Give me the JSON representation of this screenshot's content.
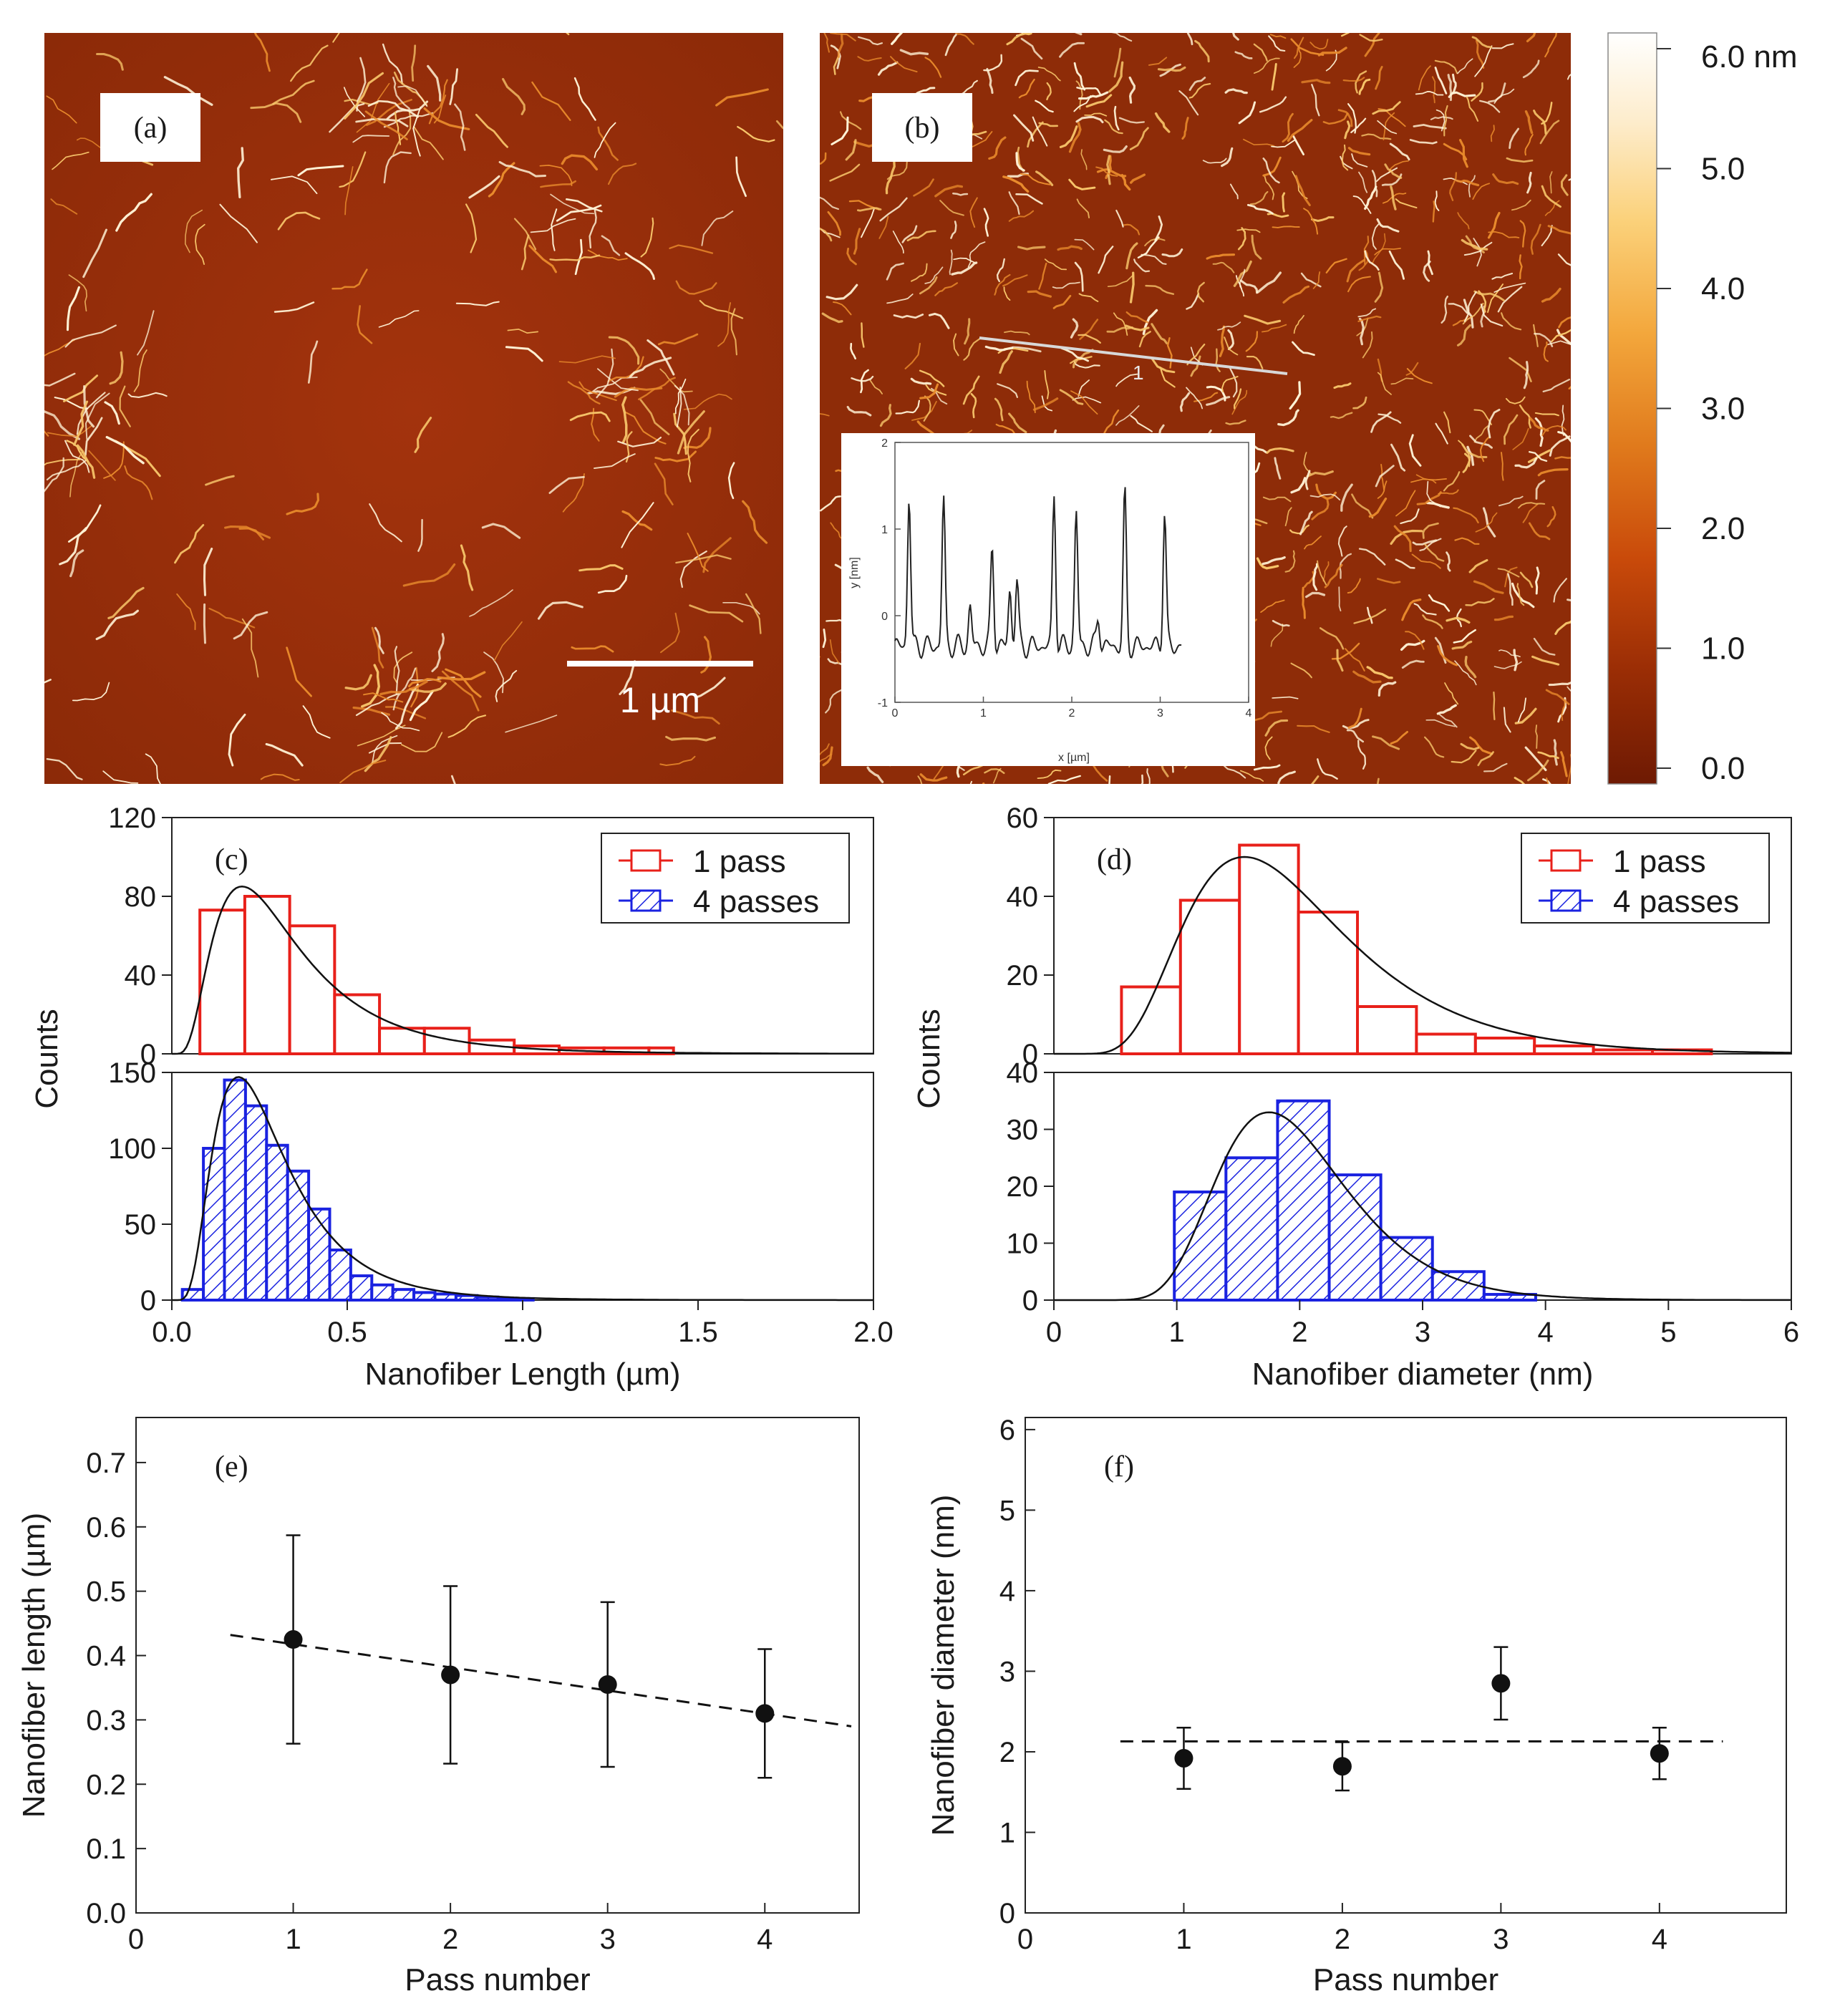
{
  "figure": {
    "afm_a": {
      "label": "(a)",
      "scale_bar": "1 µm"
    },
    "afm_b": {
      "label": "(b)",
      "profile_marker": "1"
    },
    "colorbar": {
      "top_label": "6.0 nm",
      "ticks": [
        "5.0",
        "4.0",
        "3.0",
        "2.0",
        "1.0",
        "0.0"
      ],
      "range_nm": [
        0,
        6
      ]
    },
    "inset_profile": {
      "xlabel": "x [µm]",
      "ylabel": "y [nm]",
      "xticks": [
        "0",
        "1",
        "2",
        "3",
        "4"
      ],
      "yticks": [
        "2",
        "1",
        "0",
        "-1"
      ],
      "xlim": [
        0,
        4
      ],
      "ylim": [
        -1,
        2
      ]
    }
  },
  "chart_data": [
    {
      "panel": "(c)",
      "type": "bar",
      "title": "",
      "xlabel": "Nanofiber Length (µm)",
      "ylabel": "Counts",
      "xlim": [
        0,
        2.0
      ],
      "xticks": [
        "0.0",
        "0.5",
        "1.0",
        "1.5",
        "2.0"
      ],
      "legend": {
        "position": "top-right",
        "entries": [
          "1 pass",
          "4 passes"
        ]
      },
      "subplots": [
        {
          "name": "1 pass",
          "color": "#e8201a",
          "hatched": false,
          "ylim": [
            0,
            120
          ],
          "yticks": [
            "0",
            "40",
            "80",
            "120"
          ],
          "bins": [
            0.08,
            0.208,
            0.336,
            0.464,
            0.592,
            0.72,
            0.848,
            0.976,
            1.104,
            1.232,
            1.36,
            1.43
          ],
          "values": [
            73,
            80,
            65,
            30,
            13,
            13,
            7,
            4,
            3,
            3,
            3
          ],
          "fit_peak": {
            "x": 0.2,
            "y": 85
          }
        },
        {
          "name": "4 passes",
          "color": "#1a22e0",
          "hatched": true,
          "ylim": [
            0,
            150
          ],
          "yticks": [
            "0",
            "50",
            "100",
            "150"
          ],
          "bins": [
            0.03,
            0.09,
            0.15,
            0.21,
            0.27,
            0.33,
            0.39,
            0.45,
            0.51,
            0.57,
            0.63,
            0.69,
            0.75,
            0.81,
            0.87,
            0.93,
            0.99,
            1.03
          ],
          "values": [
            7,
            100,
            145,
            128,
            102,
            85,
            60,
            33,
            16,
            10,
            7,
            5,
            4,
            3,
            2,
            1,
            1
          ],
          "fit_peak": {
            "x": 0.19,
            "y": 147
          }
        }
      ]
    },
    {
      "panel": "(d)",
      "type": "bar",
      "title": "",
      "xlabel": "Nanofiber diameter (nm)",
      "ylabel": "Counts",
      "xlim": [
        0,
        6
      ],
      "xticks": [
        "0",
        "1",
        "2",
        "3",
        "4",
        "5",
        "6"
      ],
      "legend": {
        "position": "top-right",
        "entries": [
          "1 pass",
          "4 passes"
        ]
      },
      "subplots": [
        {
          "name": "1 pass",
          "color": "#e8201a",
          "hatched": false,
          "ylim": [
            0,
            60
          ],
          "yticks": [
            "0",
            "20",
            "40",
            "60"
          ],
          "bins": [
            0.55,
            1.03,
            1.51,
            1.99,
            2.47,
            2.95,
            3.43,
            3.91,
            4.39,
            4.87,
            5.35
          ],
          "values": [
            17,
            39,
            53,
            36,
            12,
            5,
            4,
            2,
            1,
            1
          ],
          "fit_peak": {
            "x": 1.55,
            "y": 50
          }
        },
        {
          "name": "4 passes",
          "color": "#1a22e0",
          "hatched": true,
          "ylim": [
            0,
            40
          ],
          "yticks": [
            "0",
            "10",
            "20",
            "30",
            "40"
          ],
          "bins": [
            0.98,
            1.4,
            1.82,
            2.24,
            2.66,
            3.08,
            3.5,
            3.92
          ],
          "values": [
            19,
            25,
            35,
            22,
            11,
            5,
            1
          ],
          "fit_peak": {
            "x": 1.75,
            "y": 33
          }
        }
      ]
    },
    {
      "panel": "(e)",
      "type": "scatter",
      "xlabel": "Pass number",
      "ylabel": "Nanofiber length (µm)",
      "xlim": [
        0,
        4.6
      ],
      "ylim": [
        0.0,
        0.77
      ],
      "xticks": [
        "0",
        "1",
        "2",
        "3",
        "4"
      ],
      "yticks": [
        "0.0",
        "0.1",
        "0.2",
        "0.3",
        "0.4",
        "0.5",
        "0.6",
        "0.7"
      ],
      "x": [
        1,
        2,
        3,
        4
      ],
      "y": [
        0.425,
        0.37,
        0.355,
        0.31
      ],
      "error": [
        0.162,
        0.138,
        0.128,
        0.1
      ],
      "fit_line": {
        "x": [
          0.6,
          4.55
        ],
        "y": [
          0.432,
          0.29
        ]
      }
    },
    {
      "panel": "(f)",
      "type": "scatter",
      "xlabel": "Pass number",
      "ylabel": "Nanofiber diameter (nm)",
      "xlim": [
        0,
        4.8
      ],
      "ylim": [
        0,
        6.15
      ],
      "xticks": [
        "0",
        "1",
        "2",
        "3",
        "4"
      ],
      "yticks": [
        "0",
        "1",
        "2",
        "3",
        "4",
        "5",
        "6"
      ],
      "x": [
        1,
        2,
        3,
        4
      ],
      "y": [
        1.92,
        1.82,
        2.85,
        1.98
      ],
      "error": [
        0.38,
        0.3,
        0.45,
        0.32
      ],
      "fit_line": {
        "x": [
          0.6,
          4.4
        ],
        "y": [
          2.13,
          2.13
        ]
      }
    }
  ]
}
